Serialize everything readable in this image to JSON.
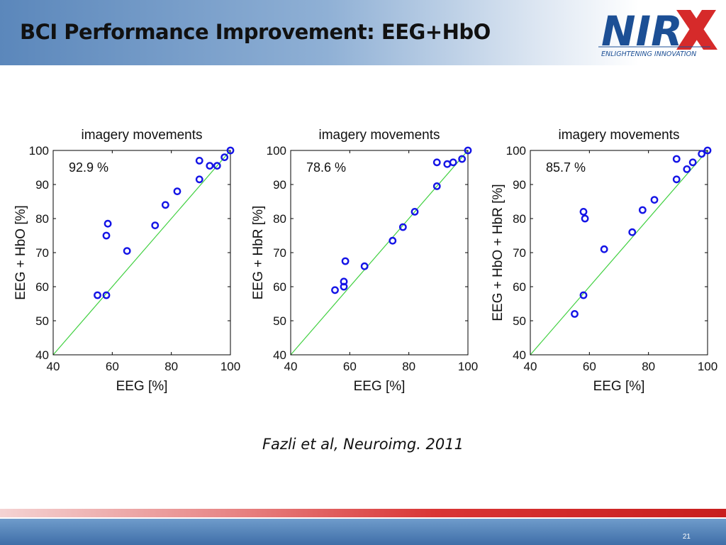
{
  "slide": {
    "title": "BCI Performance Improvement: EEG+HbO",
    "citation": "Fazli et al, Neuroimg. 2011",
    "page_number": "21"
  },
  "logo": {
    "name": "NIRX",
    "tagline": "ENLIGHTENING INNOVATION",
    "colors": {
      "text": "#1c4f95",
      "accent": "#d62a2a"
    }
  },
  "colors": {
    "marker": "#1414e6",
    "diagonal": "#40d040",
    "axis": "#000000"
  },
  "chart_data": [
    {
      "type": "scatter",
      "title": "imagery movements",
      "xlabel": "EEG [%]",
      "ylabel": "EEG + HbO [%]",
      "annotation": "92.9 %",
      "xlim": [
        40,
        100
      ],
      "ylim": [
        40,
        100
      ],
      "xticks": [
        40,
        60,
        80,
        100
      ],
      "yticks": [
        40,
        50,
        60,
        70,
        80,
        90,
        100
      ],
      "diagonal": true,
      "points": [
        [
          55,
          57.5
        ],
        [
          58,
          57.5
        ],
        [
          58,
          75
        ],
        [
          58.5,
          78.5
        ],
        [
          65,
          70.5
        ],
        [
          74.5,
          78
        ],
        [
          78,
          84
        ],
        [
          82,
          88
        ],
        [
          89.5,
          91.5
        ],
        [
          89.5,
          97
        ],
        [
          93,
          95.5
        ],
        [
          95.5,
          95.5
        ],
        [
          98,
          98
        ],
        [
          100,
          100
        ]
      ]
    },
    {
      "type": "scatter",
      "title": "imagery movements",
      "xlabel": "EEG [%]",
      "ylabel": "EEG + HbR [%]",
      "annotation": "78.6 %",
      "xlim": [
        40,
        100
      ],
      "ylim": [
        40,
        100
      ],
      "xticks": [
        40,
        60,
        80,
        100
      ],
      "yticks": [
        40,
        50,
        60,
        70,
        80,
        90,
        100
      ],
      "diagonal": true,
      "points": [
        [
          55,
          59
        ],
        [
          58,
          60
        ],
        [
          58,
          61.5
        ],
        [
          58.5,
          67.5
        ],
        [
          65,
          66
        ],
        [
          74.5,
          73.5
        ],
        [
          78,
          77.5
        ],
        [
          82,
          82
        ],
        [
          89.5,
          89.5
        ],
        [
          89.5,
          96.5
        ],
        [
          93,
          96
        ],
        [
          95,
          96.5
        ],
        [
          98,
          97.5
        ],
        [
          100,
          100
        ]
      ]
    },
    {
      "type": "scatter",
      "title": "imagery movements",
      "xlabel": "EEG [%]",
      "ylabel": "EEG + HbO + HbR [%]",
      "annotation": "85.7 %",
      "xlim": [
        40,
        100
      ],
      "ylim": [
        40,
        100
      ],
      "xticks": [
        40,
        60,
        80,
        100
      ],
      "yticks": [
        40,
        50,
        60,
        70,
        80,
        90,
        100
      ],
      "diagonal": true,
      "points": [
        [
          55,
          52
        ],
        [
          58,
          57.5
        ],
        [
          58,
          82
        ],
        [
          58.5,
          80
        ],
        [
          65,
          71
        ],
        [
          74.5,
          76
        ],
        [
          78,
          82.5
        ],
        [
          82,
          85.5
        ],
        [
          89.5,
          91.5
        ],
        [
          89.5,
          97.5
        ],
        [
          93,
          94.5
        ],
        [
          95,
          96.5
        ],
        [
          98,
          99
        ],
        [
          100,
          100
        ]
      ]
    }
  ]
}
